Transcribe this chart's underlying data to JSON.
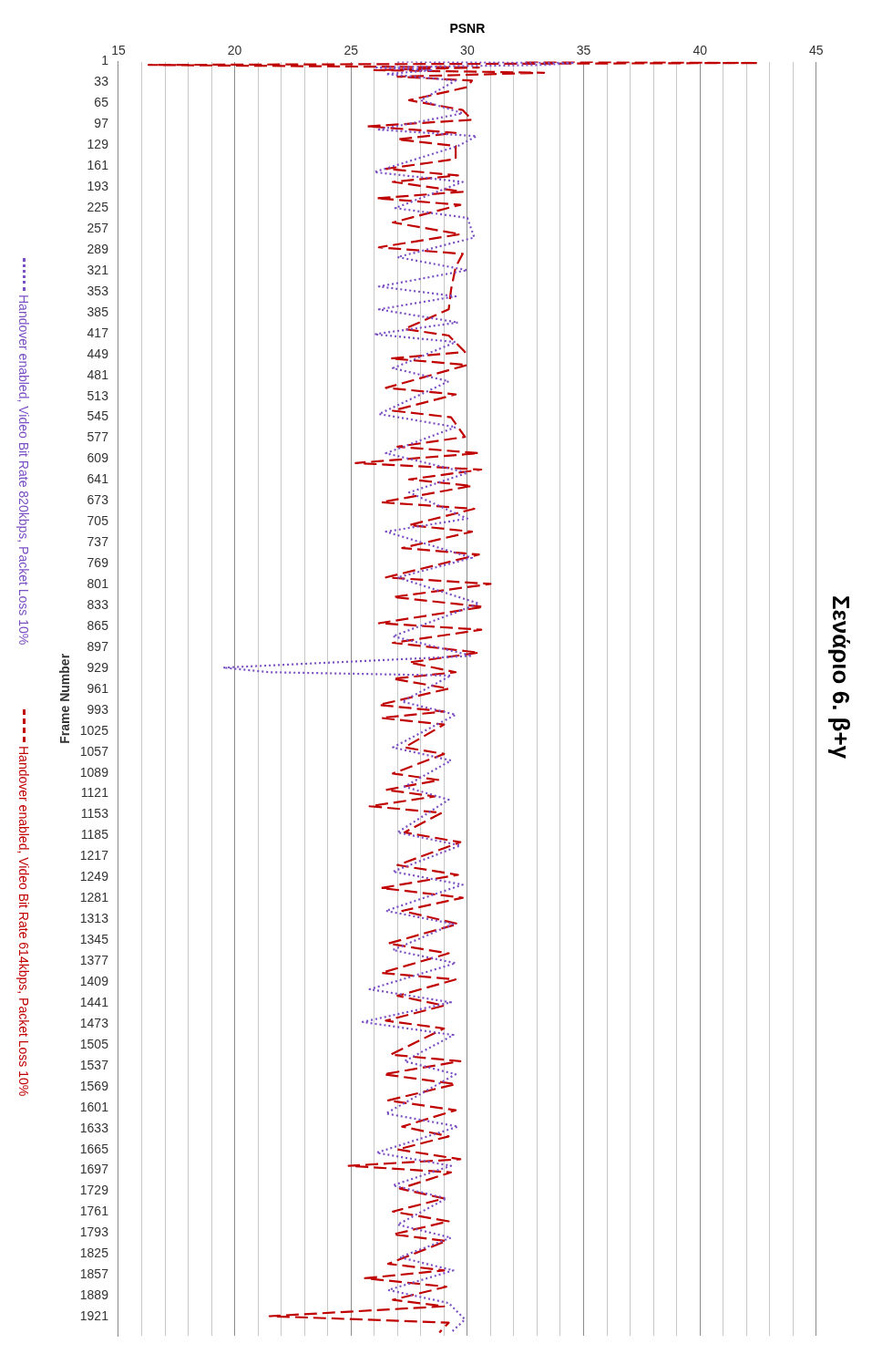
{
  "chart_data": {
    "type": "line",
    "orientation": "horizontal",
    "title": "Σενάριο 6. β+γ",
    "xlabel": "PSNR",
    "ylabel": "Frame Number",
    "ylim": [
      1950,
      1
    ],
    "yticks": [
      1,
      33,
      65,
      97,
      129,
      161,
      193,
      225,
      257,
      289,
      321,
      353,
      385,
      417,
      449,
      481,
      513,
      545,
      577,
      609,
      641,
      673,
      705,
      737,
      769,
      801,
      833,
      865,
      897,
      929,
      961,
      993,
      1025,
      1057,
      1089,
      1121,
      1153,
      1185,
      1217,
      1249,
      1281,
      1313,
      1345,
      1377,
      1409,
      1441,
      1473,
      1505,
      1537,
      1569,
      1601,
      1633,
      1665,
      1697,
      1729,
      1761,
      1793,
      1825,
      1857,
      1889,
      1921
    ],
    "xlim": [
      15,
      45
    ],
    "xticks": [
      15,
      {
        "value": 16,
        "label": null
      },
      {
        "value": 17,
        "label": null
      },
      {
        "value": 18,
        "label": null
      },
      {
        "value": 19,
        "label": null
      },
      20,
      {
        "value": 21,
        "label": null
      },
      {
        "value": 22,
        "label": null
      },
      {
        "value": 23,
        "label": null
      },
      {
        "value": 24,
        "label": null
      },
      25,
      {
        "value": 26,
        "label": null
      },
      {
        "value": 27,
        "label": null
      },
      {
        "value": 28,
        "label": null
      },
      {
        "value": 29,
        "label": null
      },
      30,
      {
        "value": 31,
        "label": null
      },
      {
        "value": 32,
        "label": null
      },
      {
        "value": 33,
        "label": null
      },
      {
        "value": 34,
        "label": null
      },
      35,
      {
        "value": 36,
        "label": null
      },
      {
        "value": 37,
        "label": null
      },
      {
        "value": 38,
        "label": null
      },
      {
        "value": 39,
        "label": null
      },
      40,
      {
        "value": 41,
        "label": null
      },
      {
        "value": 42,
        "label": null
      },
      {
        "value": 43,
        "label": null
      },
      {
        "value": 44,
        "label": null
      },
      45
    ],
    "grid": "x",
    "legend": "left",
    "marker": "none",
    "series": [
      {
        "name": "Handover enabled, Video Bit Rate 820kbps, Packet Loss 10%",
        "color": "#7b4fc4",
        "line_style": "dotted",
        "x": [
          1,
          3,
          6,
          10,
          14,
          20,
          30,
          60,
          80,
          105,
          115,
          130,
          170,
          185,
          225,
          240,
          270,
          300,
          320,
          345,
          360,
          380,
          400,
          418,
          430,
          470,
          490,
          540,
          560,
          600,
          630,
          660,
          700,
          720,
          760,
          790,
          830,
          880,
          910,
          928,
          935,
          940,
          980,
          1000,
          1050,
          1070,
          1110,
          1130,
          1180,
          1200,
          1240,
          1260,
          1300,
          1320,
          1360,
          1380,
          1420,
          1440,
          1470,
          1490,
          1530,
          1550,
          1610,
          1630,
          1670,
          1690,
          1720,
          1740,
          1780,
          1800,
          1830,
          1850,
          1880,
          1900,
          1925,
          1945
        ],
        "values": [
          27,
          34.6,
          33.3,
          26,
          28.5,
          26.5,
          29.5,
          28,
          29.8,
          26.2,
          30.4,
          29.6,
          26,
          29.8,
          26.9,
          30,
          30.3,
          27,
          30,
          26.2,
          29.5,
          26.2,
          29.6,
          26,
          29.5,
          26.8,
          29.2,
          26.2,
          29.5,
          26.5,
          30,
          27.5,
          30,
          26.5,
          30.2,
          27,
          30.5,
          26.8,
          30.2,
          19.5,
          21.5,
          29.3,
          27.2,
          29.5,
          26.8,
          29.3,
          27.3,
          29.2,
          27,
          29.7,
          26.8,
          29.8,
          26.5,
          29.4,
          26.8,
          29.5,
          25.8,
          29.3,
          25.5,
          29.4,
          27.3,
          29.5,
          26.5,
          29.6,
          26.1,
          29.3,
          26.8,
          29.1,
          27,
          29.3,
          27.1,
          29.4,
          26.6,
          29.2,
          29.9,
          29.3
        ]
      },
      {
        "name": "Handover enabled, Video Bit Rate 614kbps, Packet Loss 10%",
        "color": "#c00000",
        "line_style": "dashed",
        "x": [
          1,
          3,
          6,
          10,
          14,
          18,
          24,
          30,
          40,
          60,
          75,
          90,
          100,
          110,
          120,
          130,
          150,
          165,
          175,
          185,
          200,
          210,
          220,
          247,
          265,
          285,
          295,
          315,
          350,
          380,
          410,
          420,
          445,
          455,
          465,
          500,
          510,
          535,
          545,
          575,
          590,
          600,
          615,
          625,
          640,
          650,
          675,
          685,
          710,
          720,
          745,
          755,
          790,
          800,
          820,
          835,
          860,
          870,
          890,
          905,
          920,
          935,
          945,
          960,
          985,
          995,
          1005,
          1015,
          1050,
          1060,
          1090,
          1100,
          1115,
          1125,
          1140,
          1150,
          1180,
          1195,
          1230,
          1245,
          1265,
          1280,
          1300,
          1320,
          1350,
          1365,
          1395,
          1405,
          1430,
          1445,
          1468,
          1480,
          1520,
          1530,
          1550,
          1565,
          1590,
          1605,
          1630,
          1645,
          1665,
          1680,
          1690,
          1700,
          1725,
          1740,
          1760,
          1775,
          1795,
          1805,
          1840,
          1850,
          1862,
          1875,
          1895,
          1905,
          1920,
          1930,
          1945
        ],
        "values": [
          32.5,
          42.5,
          16.3,
          30.5,
          26,
          33.3,
          27,
          30.2,
          30,
          27.5,
          29.8,
          30.2,
          25.7,
          29.5,
          27,
          29.5,
          29.5,
          26.5,
          29.6,
          26.8,
          29.8,
          26.1,
          29.7,
          26.8,
          29.7,
          26.2,
          29.8,
          29.5,
          29.3,
          29.2,
          27.3,
          29.2,
          29.9,
          26.7,
          30,
          26.5,
          29.5,
          26.8,
          29.3,
          29.9,
          27,
          30.5,
          25.2,
          30.6,
          27.5,
          30.2,
          26.3,
          30.3,
          27.5,
          30.2,
          27.2,
          30.5,
          26.5,
          31,
          26.8,
          30.7,
          26.2,
          30.6,
          26.8,
          30.5,
          27.5,
          29.5,
          26.8,
          29.2,
          26.2,
          29,
          26.3,
          29,
          27.3,
          29,
          26.8,
          28.8,
          26.5,
          28.6,
          25.8,
          28.9,
          27.3,
          29.7,
          27,
          29.6,
          26.3,
          29.8,
          27.2,
          29.6,
          26.6,
          29.2,
          26.3,
          29.5,
          27,
          29,
          26.5,
          29,
          26.7,
          29.7,
          26.4,
          29.5,
          26.6,
          29.5,
          27.2,
          29.2,
          27,
          29.7,
          24.9,
          29.3,
          27.1,
          29,
          26.8,
          29.2,
          26.8,
          29.1,
          26.6,
          29,
          25.6,
          29.1,
          26.8,
          29,
          21.5,
          29.2,
          28.8
        ]
      }
    ]
  }
}
